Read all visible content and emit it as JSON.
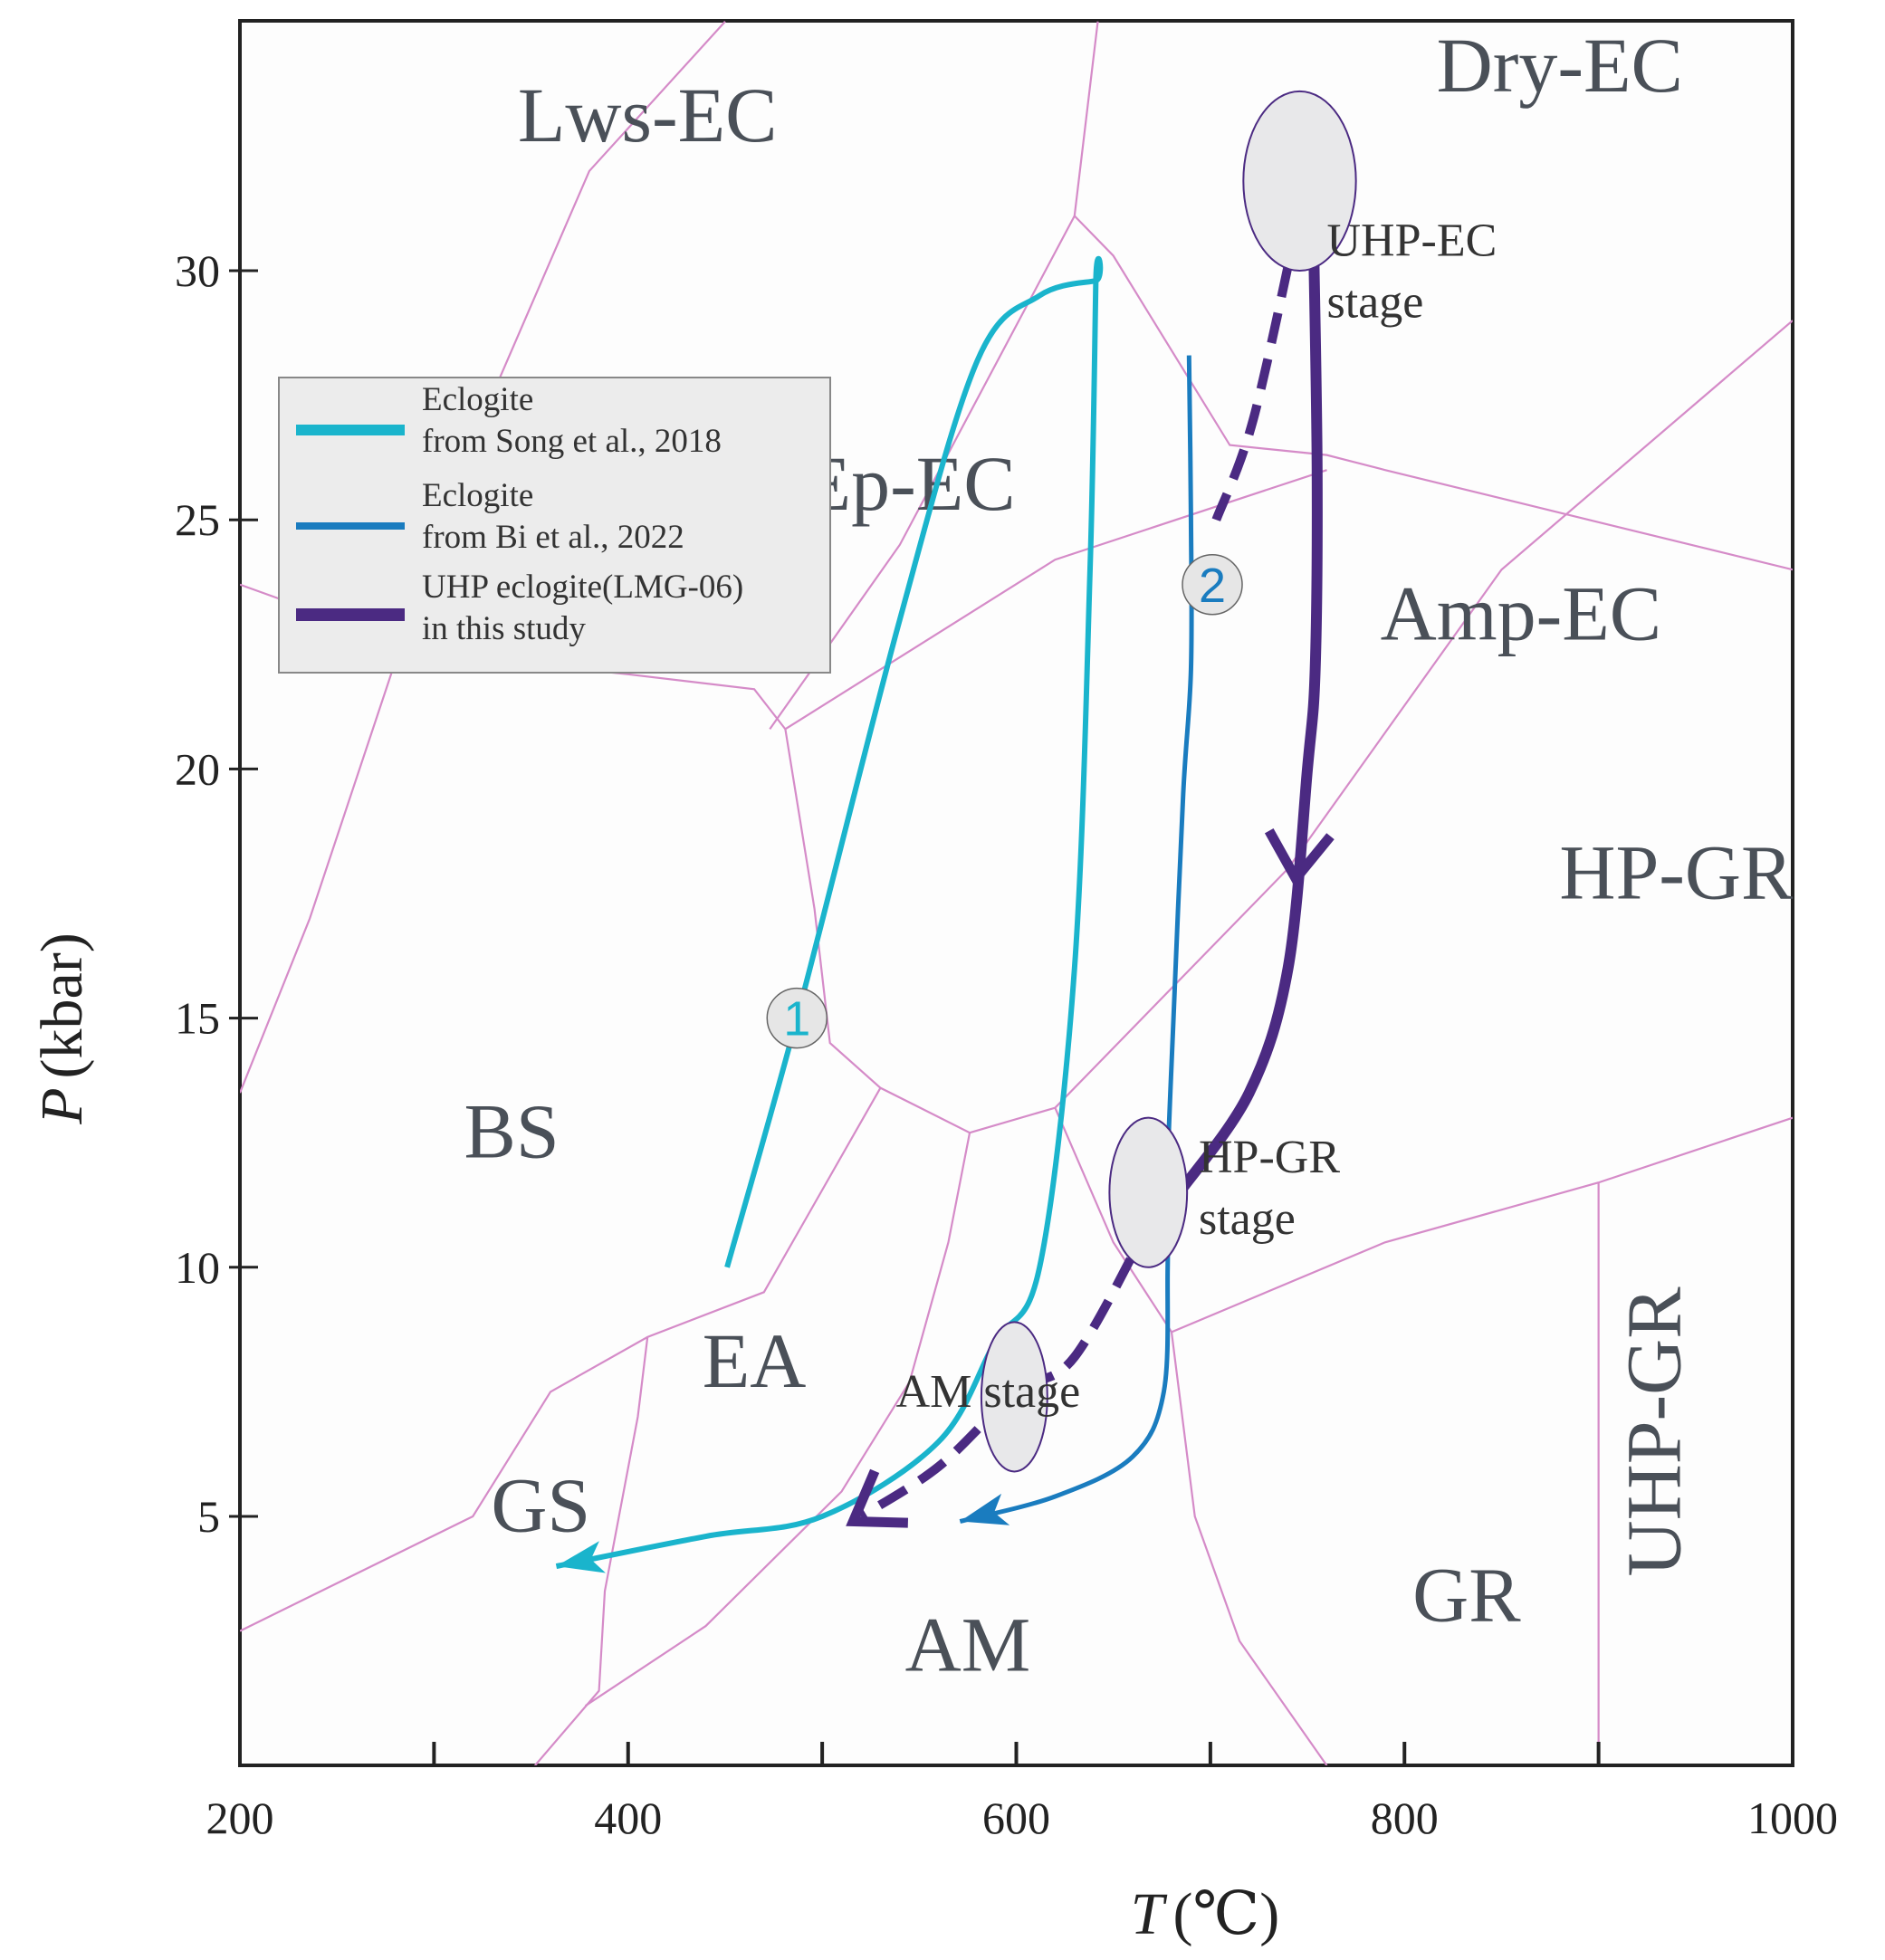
{
  "chart_data": {
    "type": "line",
    "xlabel": {
      "symbol": "T",
      "unit": "(℃)"
    },
    "ylabel": {
      "symbol": "P",
      "unit": "(kbar)"
    },
    "xlim": [
      200,
      1000
    ],
    "ylim": [
      0,
      35
    ],
    "x_ticks": [
      {
        "value": 200,
        "label": "200"
      },
      {
        "value": 400,
        "label": "400"
      },
      {
        "value": 600,
        "label": "600"
      },
      {
        "value": 800,
        "label": "800"
      },
      {
        "value": 1000,
        "label": "1000"
      }
    ],
    "x_minor_ticks": [
      300,
      500,
      700,
      900
    ],
    "y_ticks": [
      {
        "value": 5,
        "label": "5"
      },
      {
        "value": 10,
        "label": "10"
      },
      {
        "value": 15,
        "label": "15"
      },
      {
        "value": 20,
        "label": "20"
      },
      {
        "value": 25,
        "label": "25"
      },
      {
        "value": 30,
        "label": "30"
      }
    ],
    "grid": false,
    "colors": {
      "song_2018": "#1ab4cc",
      "bi_2022": "#1a7cbf",
      "this_study": "#4b2a82",
      "facies_boundary": "#d58bc8",
      "field_label": "#4a5058",
      "stage_marker_fill": "#e8e8ea",
      "legend_bg": "#ececec"
    },
    "legend": {
      "placement": "top-left",
      "entries": [
        {
          "line1": "Eclogite",
          "line2": "from Song et al., 2018",
          "series": "song_2018"
        },
        {
          "line1": "Eclogite",
          "line2": "from Bi et al., 2022",
          "series": "bi_2022"
        },
        {
          "line1": "UHP eclogite(LMG-06)",
          "line2": "in this study",
          "series": "this_study"
        }
      ]
    },
    "facies_fields": [
      {
        "label": "Lws-EC",
        "x": 410,
        "y": 32.6
      },
      {
        "label": "Dry-EC",
        "x": 880,
        "y": 33.6
      },
      {
        "label": "Ep-EC",
        "x": 545,
        "y": 25.2
      },
      {
        "label": "Amp-EC",
        "x": 860,
        "y": 22.6
      },
      {
        "label": "HP-GR",
        "x": 940,
        "y": 17.4
      },
      {
        "label": "BS",
        "x": 340,
        "y": 12.2
      },
      {
        "label": "EA",
        "x": 465,
        "y": 7.6
      },
      {
        "label": "GS",
        "x": 355,
        "y": 4.7
      },
      {
        "label": "AM",
        "x": 575,
        "y": 1.9
      },
      {
        "label": "GR",
        "x": 832,
        "y": 2.9
      },
      {
        "label": "UHP-GR",
        "x": 942,
        "y": 6.7,
        "rotated": true
      }
    ],
    "facies_boundaries": [
      [
        [
          200,
          13.5
        ],
        [
          236,
          17
        ],
        [
          283,
          22.5
        ],
        [
          319,
          26.6
        ],
        [
          330,
          27.5
        ],
        [
          380,
          32
        ],
        [
          450,
          35
        ]
      ],
      [
        [
          200,
          23.7
        ],
        [
          300,
          22.3
        ],
        [
          400,
          21.9
        ],
        [
          465,
          21.6
        ],
        [
          481,
          20.8
        ]
      ],
      [
        [
          481,
          20.8
        ],
        [
          496,
          17.2
        ],
        [
          504,
          14.5
        ],
        [
          530,
          13.6
        ],
        [
          576,
          12.7
        ],
        [
          620,
          13.2
        ],
        [
          740,
          18
        ],
        [
          850,
          24
        ],
        [
          1000,
          29
        ]
      ],
      [
        [
          481,
          20.8
        ],
        [
          620,
          24.2
        ],
        [
          760,
          26
        ]
      ],
      [
        [
          1000,
          24
        ],
        [
          790,
          26
        ],
        [
          760,
          26.3
        ],
        [
          710,
          26.5
        ],
        [
          650,
          30.3
        ],
        [
          630,
          31.1
        ],
        [
          642,
          35
        ]
      ],
      [
        [
          630,
          31.1
        ],
        [
          540,
          24.5
        ],
        [
          473,
          20.8
        ]
      ],
      [
        [
          530,
          13.6
        ],
        [
          470,
          9.5
        ],
        [
          410,
          8.6
        ],
        [
          360,
          7.5
        ],
        [
          320,
          5
        ],
        [
          200,
          2.7
        ]
      ],
      [
        [
          410,
          8.6
        ],
        [
          405,
          7
        ],
        [
          388,
          3.5
        ],
        [
          385,
          1.5
        ],
        [
          352,
          0
        ]
      ],
      [
        [
          576,
          12.7
        ],
        [
          565,
          10.5
        ],
        [
          545,
          7.7
        ],
        [
          510,
          5.5
        ],
        [
          440,
          2.8
        ],
        [
          378,
          1.2
        ]
      ],
      [
        [
          620,
          13.2
        ],
        [
          650,
          10.5
        ],
        [
          680,
          8.7
        ],
        [
          790,
          10.5
        ],
        [
          900,
          11.7
        ],
        [
          1000,
          13
        ]
      ],
      [
        [
          680,
          8.7
        ],
        [
          692,
          5
        ],
        [
          715,
          2.5
        ],
        [
          760,
          0
        ]
      ],
      [
        [
          900,
          11.7
        ],
        [
          900,
          0
        ]
      ]
    ],
    "series": [
      {
        "id": "song_2018",
        "path_label": "1",
        "label_point": [
          487,
          15
        ],
        "arrow_tip": [
          363,
          4.0
        ],
        "points": [
          [
            451,
            10
          ],
          [
            487,
            15
          ],
          [
            540,
            23
          ],
          [
            580,
            28.2
          ],
          [
            612,
            29.5
          ],
          [
            641,
            29.8
          ],
          [
            641,
            29.8
          ],
          [
            638,
            24
          ],
          [
            630,
            16
          ],
          [
            612,
            10
          ],
          [
            589,
            8.5
          ],
          [
            560,
            6.5
          ],
          [
            500,
            5
          ],
          [
            440,
            4.6
          ],
          [
            363,
            4.0
          ]
        ]
      },
      {
        "id": "bi_2022",
        "path_label": "2",
        "label_point": [
          701,
          23.7
        ],
        "arrow_tip": [
          571,
          4.9
        ],
        "points": [
          [
            689,
            28.3
          ],
          [
            690,
            25
          ],
          [
            690,
            22
          ],
          [
            686,
            19.5
          ],
          [
            681,
            15
          ],
          [
            678,
            12
          ],
          [
            678,
            10
          ],
          [
            676,
            7.5
          ],
          [
            660,
            6.2
          ],
          [
            620,
            5.4
          ],
          [
            571,
            4.9
          ]
        ]
      },
      {
        "id": "this_study",
        "segments": [
          {
            "style": "dashed",
            "points": [
              [
                745,
                31
              ],
              [
                722,
                27
              ],
              [
                703,
                25
              ]
            ]
          },
          {
            "style": "solid",
            "points": [
              [
                753,
                31
              ],
              [
                755,
                26
              ],
              [
                754,
                22
              ],
              [
                750,
                20
              ],
              [
                740,
                16
              ],
              [
                720,
                13.5
              ],
              [
                684,
                11.5
              ]
            ]
          },
          {
            "style": "dashed",
            "points": [
              [
                670,
                11
              ],
              [
                630,
                8.2
              ],
              [
                600,
                7.5
              ],
              [
                560,
                6
              ],
              [
                520,
                5
              ]
            ]
          }
        ],
        "arrows": [
          {
            "tip": [
              744,
              17.8
            ],
            "from": [
              749,
              20
            ]
          },
          {
            "tip": [
              516,
              4.9
            ],
            "from": [
              560,
              6
            ]
          }
        ]
      }
    ],
    "stages": [
      {
        "id": "uhp-ec",
        "x": 746,
        "y": 31.8,
        "rx": 29,
        "ry": 1.8,
        "label_line1": "UHP-EC",
        "label_line2": "stage",
        "label_x": 760,
        "label_y": 30.3
      },
      {
        "id": "hp-gr",
        "x": 668,
        "y": 11.5,
        "rx": 20,
        "ry": 1.5,
        "label_line1": "HP-GR",
        "label_line2": "stage",
        "label_x": 694,
        "label_y": 11.9
      },
      {
        "id": "am",
        "x": 599,
        "y": 7.4,
        "rx": 17,
        "ry": 1.5,
        "label_line1": "AM stage",
        "label_line2": "",
        "label_x": 538,
        "label_y": 7.2
      }
    ]
  }
}
